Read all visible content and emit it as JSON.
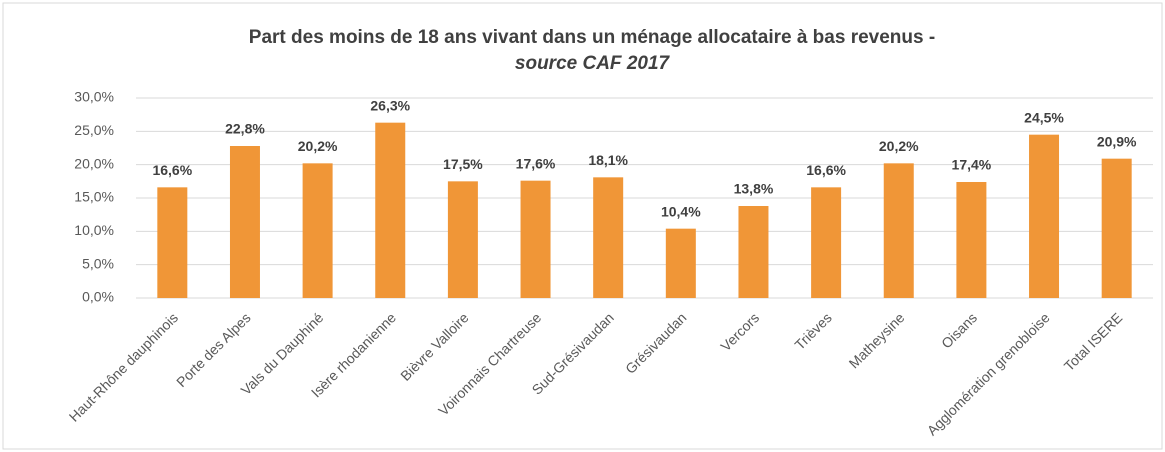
{
  "chart_data": {
    "type": "bar",
    "title": "Part des moins de 18 ans vivant dans un ménage allocataire à bas revenus -",
    "subtitle": "source CAF 2017",
    "categories": [
      "Haut-Rhône dauphinois",
      "Porte des Alpes",
      "Vals du Dauphiné",
      "Isère rhodanienne",
      "Bièvre Valloire",
      "Voironnais Chartreuse",
      "Sud-Grésivaudan",
      "Grésivaudan",
      "Vercors",
      "Trièves",
      "Matheysine",
      "Oisans",
      "Agglomération grenobloise",
      "Total ISERE"
    ],
    "values": [
      16.6,
      22.8,
      20.2,
      26.3,
      17.5,
      17.6,
      18.1,
      10.4,
      13.8,
      16.6,
      20.2,
      17.4,
      24.5,
      20.9
    ],
    "value_labels": [
      "16,6%",
      "22,8%",
      "20,2%",
      "26,3%",
      "17,5%",
      "17,6%",
      "18,1%",
      "10,4%",
      "13,8%",
      "16,6%",
      "20,2%",
      "17,4%",
      "24,5%",
      "20,9%"
    ],
    "color": "#f09637",
    "ylim": [
      0,
      30
    ],
    "yticks": [
      {
        "value": 0,
        "label": "0,0%"
      },
      {
        "value": 5,
        "label": "5,0%"
      },
      {
        "value": 10,
        "label": "10,0%"
      },
      {
        "value": 15,
        "label": "15,0%"
      },
      {
        "value": 20,
        "label": "20,0%"
      },
      {
        "value": 25,
        "label": "25,0%"
      },
      {
        "value": 30,
        "label": "30,0%"
      }
    ],
    "grid": true
  }
}
